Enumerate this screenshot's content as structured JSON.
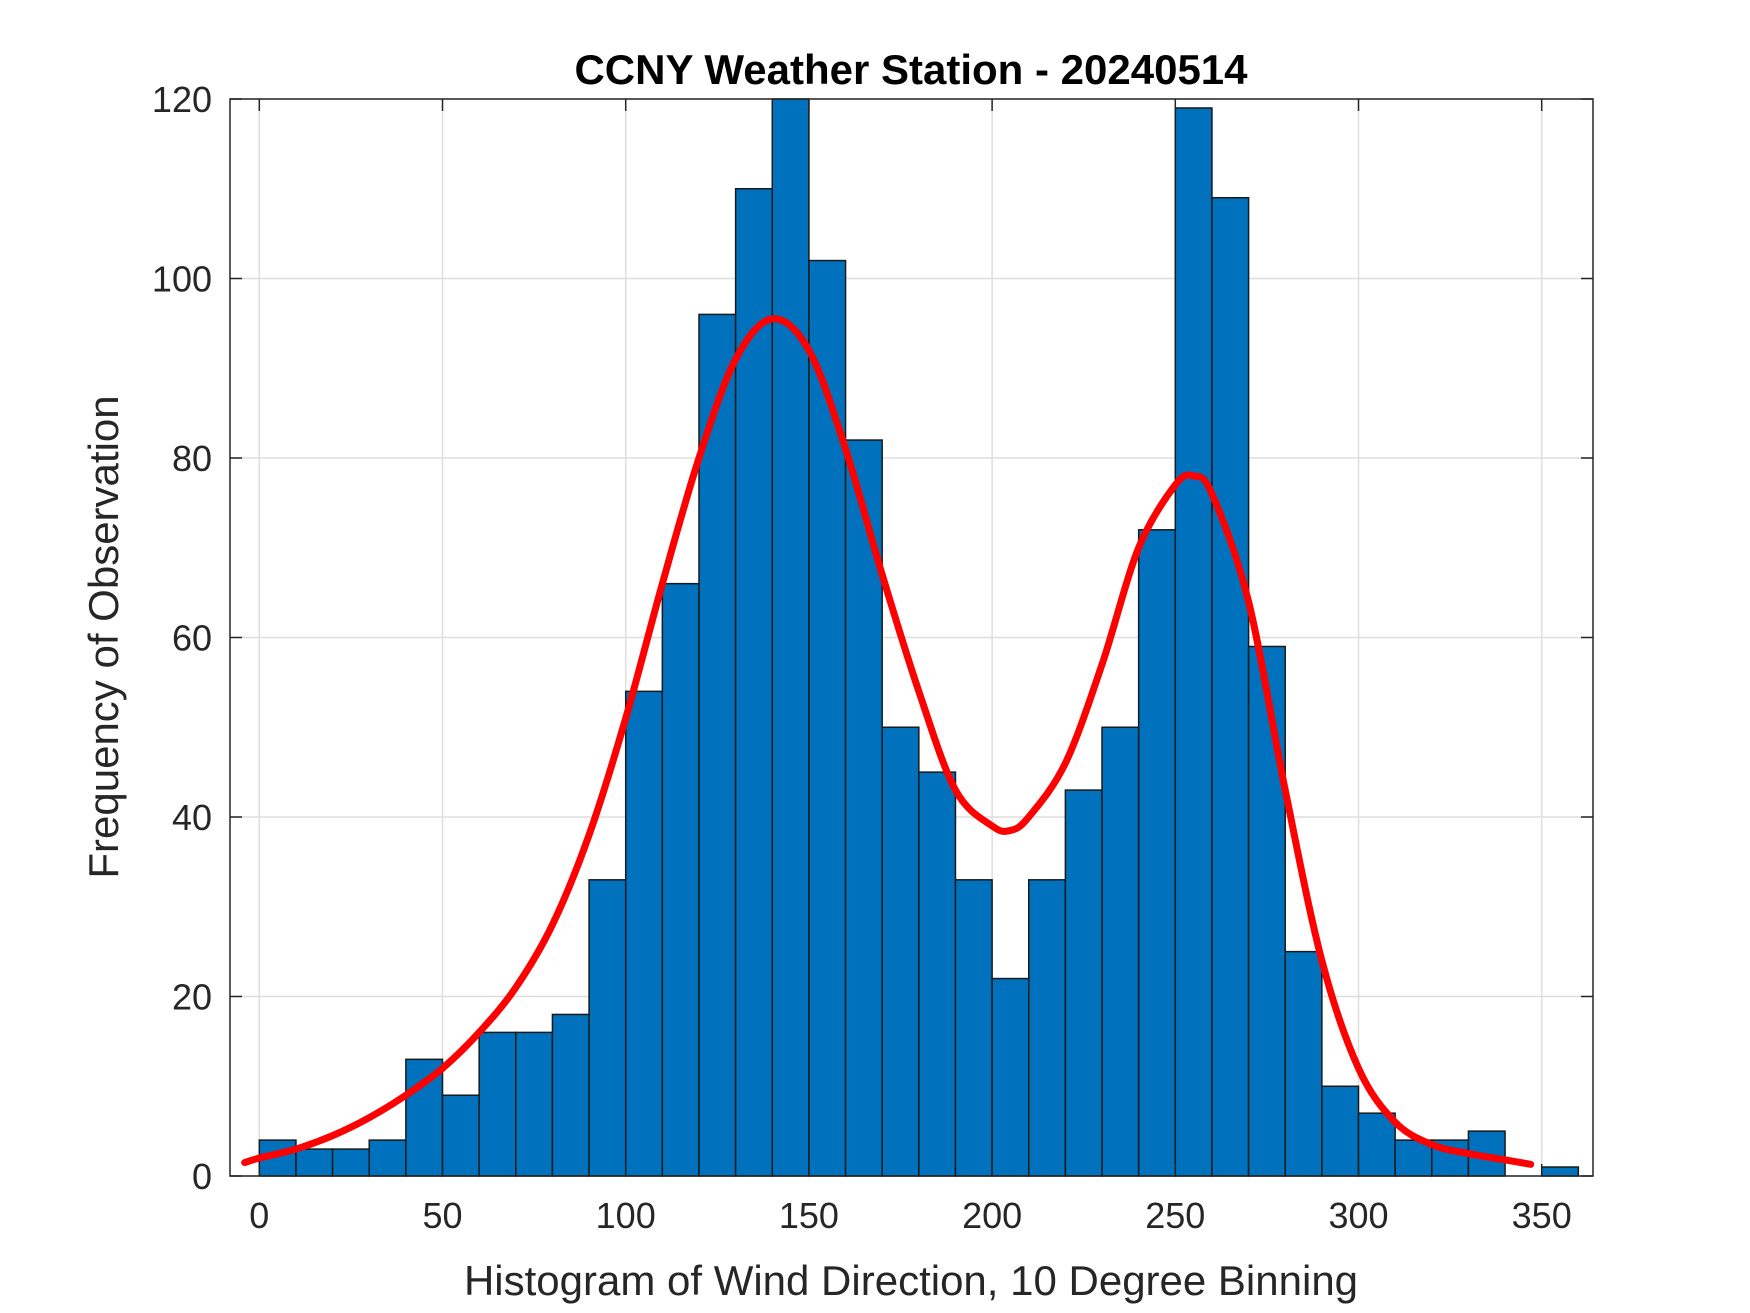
{
  "chart_data": {
    "type": "bar",
    "title": "CCNY Weather Station - 20240514",
    "xlabel": "Histogram of Wind Direction, 10 Degree Binning",
    "ylabel": "Frequency of Observation",
    "xlim": [
      -8,
      364
    ],
    "ylim": [
      0,
      120
    ],
    "xticks": [
      0,
      50,
      100,
      150,
      200,
      250,
      300,
      350
    ],
    "yticks": [
      0,
      20,
      40,
      60,
      80,
      100,
      120
    ],
    "xtick_labels": [
      "0",
      "50",
      "100",
      "150",
      "200",
      "250",
      "300",
      "350"
    ],
    "ytick_labels": [
      "0",
      "20",
      "40",
      "60",
      "80",
      "100",
      "120"
    ],
    "grid": true,
    "bin_width": 10,
    "bin_starts": [
      0,
      10,
      20,
      30,
      40,
      50,
      60,
      70,
      80,
      90,
      100,
      110,
      120,
      130,
      140,
      150,
      160,
      170,
      180,
      190,
      200,
      210,
      220,
      230,
      240,
      250,
      260,
      270,
      280,
      290,
      300,
      310,
      320,
      330,
      340,
      350
    ],
    "values": [
      4,
      3,
      3,
      4,
      13,
      9,
      16,
      16,
      18,
      33,
      54,
      66,
      96,
      110,
      120,
      102,
      82,
      50,
      45,
      33,
      22,
      33,
      43,
      50,
      72,
      119,
      109,
      59,
      25,
      10,
      7,
      4,
      4,
      5,
      0,
      1
    ],
    "fit_curve": {
      "name": "fit",
      "x": [
        -4,
        0,
        10,
        20,
        30,
        40,
        50,
        60,
        70,
        80,
        90,
        100,
        110,
        120,
        130,
        140,
        150,
        160,
        170,
        180,
        190,
        200,
        205,
        210,
        220,
        230,
        240,
        250,
        255,
        260,
        270,
        280,
        290,
        300,
        310,
        320,
        330,
        340,
        347
      ],
      "y": [
        1.5,
        2,
        3,
        4.5,
        6.5,
        9,
        12,
        16,
        21,
        28,
        38,
        51,
        66,
        80,
        91,
        95.5,
        92,
        81,
        67,
        54,
        43,
        39,
        38.5,
        40,
        46,
        57,
        70,
        77,
        78,
        76,
        64,
        43,
        24,
        12,
        6,
        3.5,
        2.5,
        1.8,
        1.3
      ]
    },
    "bar_color": "#0072BD",
    "bar_edge_color": "#1a1a1a",
    "fit_color": "#FF0000"
  }
}
